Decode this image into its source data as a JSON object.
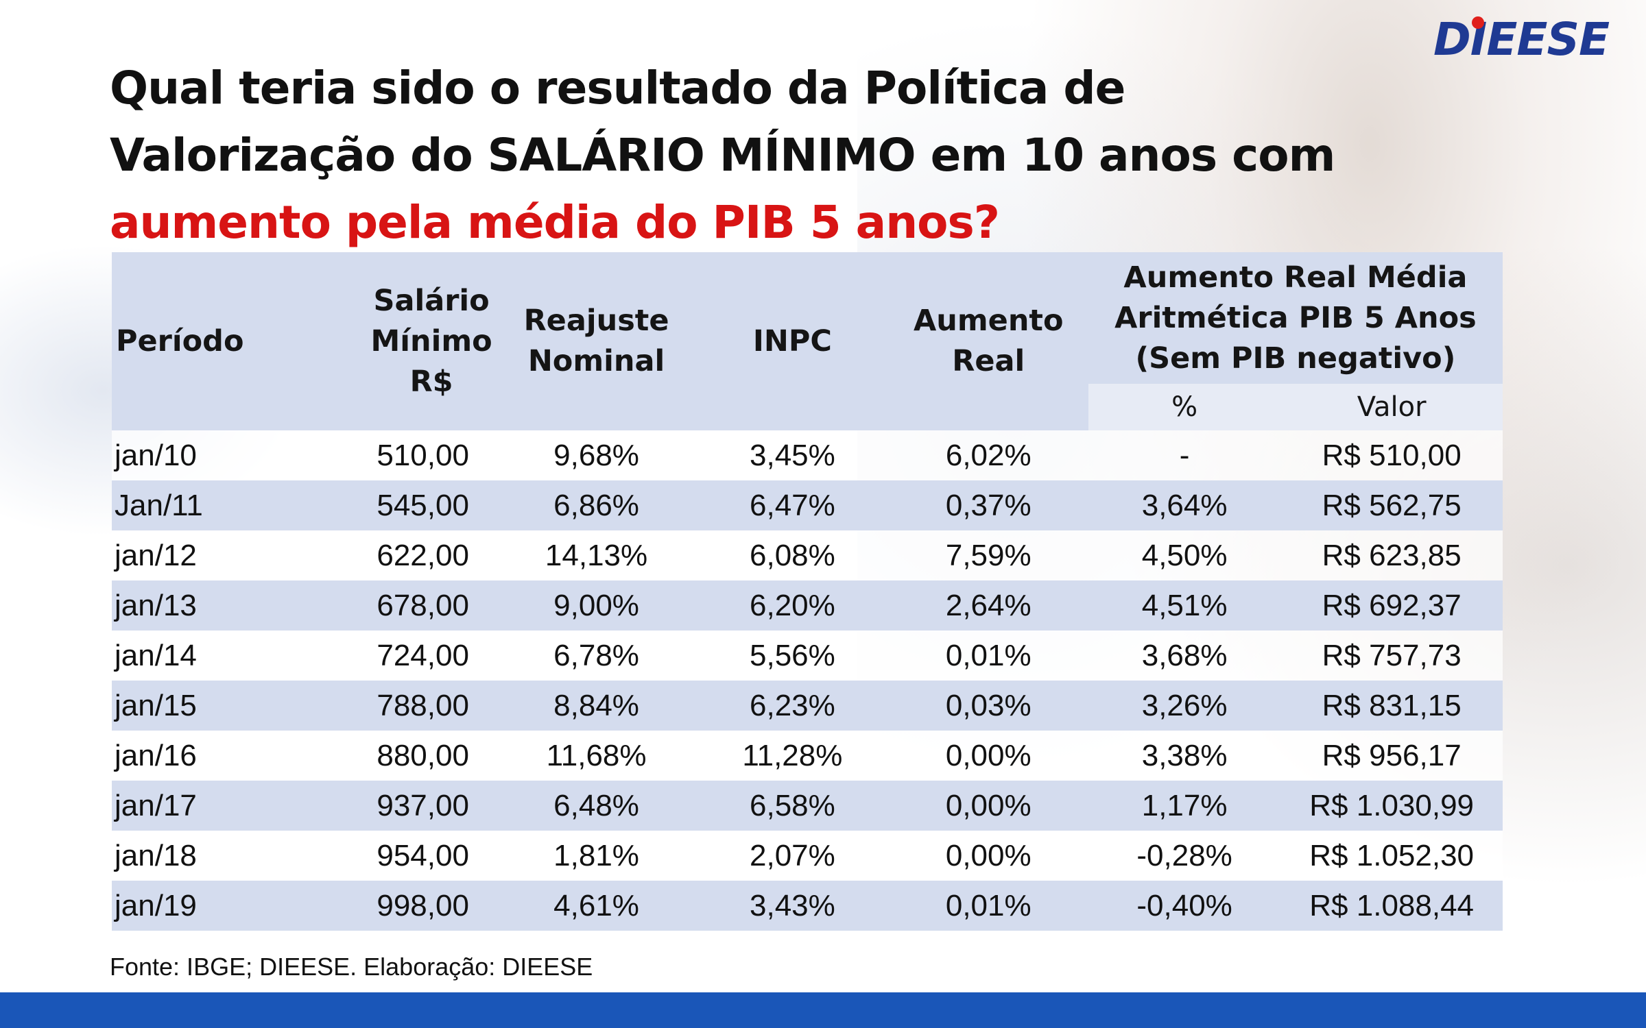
{
  "logo": "DIEESE",
  "title": {
    "line1": "Qual teria sido o resultado da Política de",
    "line2": "Valorização do SALÁRIO MÍNIMO em 10 anos com",
    "line3_highlight": "aumento pela média do PIB 5 anos?"
  },
  "table": {
    "headers": {
      "periodo": "Período",
      "salario": "Salário Mínimo R$",
      "reajuste": "Reajuste Nominal",
      "inpc": "INPC",
      "aumento_real": "Aumento Real",
      "aumento_pib": "Aumento Real Média Aritmética PIB 5 Anos (Sem PIB negativo)",
      "sub_percent": "%",
      "sub_valor": "Valor"
    },
    "rows": [
      [
        "jan/10",
        "510,00",
        "9,68%",
        "3,45%",
        "6,02%",
        "-",
        "R$ 510,00"
      ],
      [
        "Jan/11",
        "545,00",
        "6,86%",
        "6,47%",
        "0,37%",
        "3,64%",
        "R$ 562,75"
      ],
      [
        "jan/12",
        "622,00",
        "14,13%",
        "6,08%",
        "7,59%",
        "4,50%",
        "R$ 623,85"
      ],
      [
        "jan/13",
        "678,00",
        "9,00%",
        "6,20%",
        "2,64%",
        "4,51%",
        "R$ 692,37"
      ],
      [
        "jan/14",
        "724,00",
        "6,78%",
        "5,56%",
        "0,01%",
        "3,68%",
        "R$ 757,73"
      ],
      [
        "jan/15",
        "788,00",
        "8,84%",
        "6,23%",
        "0,03%",
        "3,26%",
        "R$ 831,15"
      ],
      [
        "jan/16",
        "880,00",
        "11,68%",
        "11,28%",
        "0,00%",
        "3,38%",
        "R$ 956,17"
      ],
      [
        "jan/17",
        "937,00",
        "6,48%",
        "6,58%",
        "0,00%",
        "1,17%",
        "R$ 1.030,99"
      ],
      [
        "jan/18",
        "954,00",
        "1,81%",
        "2,07%",
        "0,00%",
        "-0,28%",
        "R$ 1.052,30"
      ],
      [
        "jan/19",
        "998,00",
        "4,61%",
        "3,43%",
        "0,01%",
        "-0,40%",
        "R$ 1.088,44"
      ]
    ]
  },
  "source": "Fonte: IBGE; DIEESE. Elaboração: DIEESE",
  "colors": {
    "accent_red": "#d81414",
    "header_band": "#d4dcee",
    "bottom_bar": "#1a56b8",
    "logo": "#1f3a93"
  }
}
